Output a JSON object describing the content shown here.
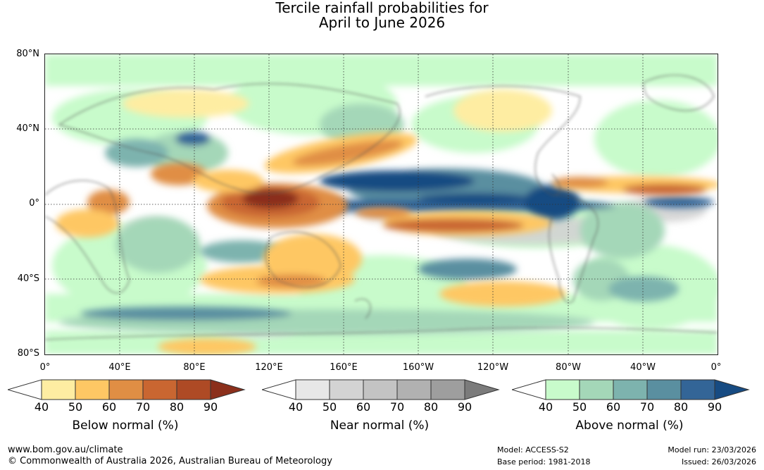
{
  "title": {
    "line1": "Tercile rainfall probabilities for",
    "line2": "April to June 2026"
  },
  "map": {
    "lat_labels": [
      "80°N",
      "40°N",
      "0°",
      "40°S",
      "80°S"
    ],
    "lon_labels": [
      "0°",
      "40°E",
      "80°E",
      "120°E",
      "160°E",
      "160°W",
      "120°W",
      "80°W",
      "40°W",
      "0°"
    ]
  },
  "colorbars": [
    {
      "title": "Below normal (%)",
      "ticks": [
        "40",
        "50",
        "60",
        "70",
        "80",
        "90"
      ],
      "colors": [
        "#ffffff",
        "#feeda2",
        "#fec764",
        "#e08e44",
        "#c96631",
        "#ae4a25",
        "#8b2f1b"
      ]
    },
    {
      "title": "Near normal (%)",
      "ticks": [
        "40",
        "50",
        "60",
        "70",
        "80",
        "90"
      ],
      "colors": [
        "#ffffff",
        "#e7e7e7",
        "#d3d3d3",
        "#c3c3c3",
        "#b1b1b1",
        "#9e9e9e",
        "#7b7b7b"
      ]
    },
    {
      "title": "Above normal (%)",
      "ticks": [
        "40",
        "50",
        "60",
        "70",
        "80",
        "90"
      ],
      "colors": [
        "#ffffff",
        "#c8fbcb",
        "#a4d7b8",
        "#7db3ae",
        "#5a8fa0",
        "#336597",
        "#174b82"
      ]
    }
  ],
  "footer": {
    "website": "www.bom.gov.au/climate",
    "copyright": "© Commonwealth of Australia 2026, Australian Bureau of Meteorology",
    "model": "Model: ACCESS-S2",
    "base_period": "Base period: 1981-2018",
    "model_run": "Model run: 23/03/2026",
    "issued": "Issued: 26/03/2026"
  }
}
